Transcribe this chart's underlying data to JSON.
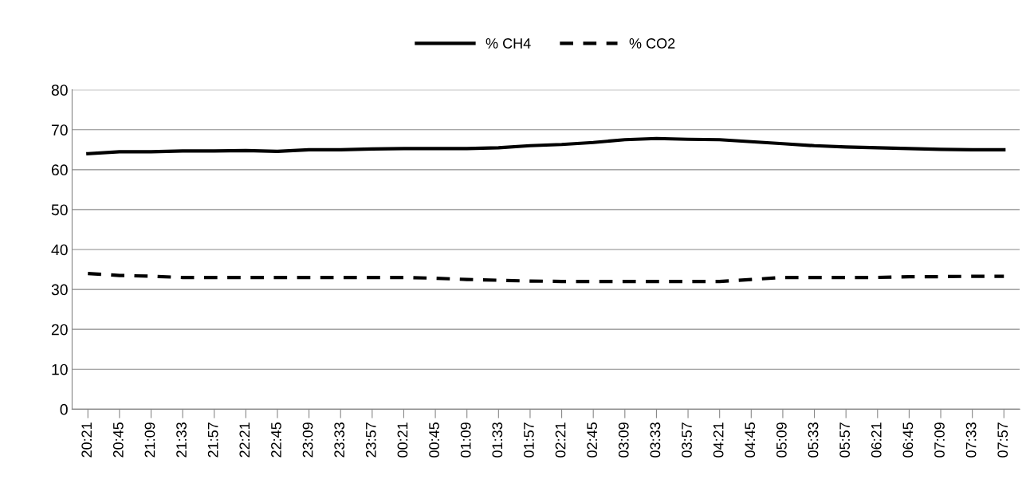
{
  "chart_data": {
    "type": "line",
    "categories": [
      "20:21",
      "20:45",
      "21:09",
      "21:33",
      "21:57",
      "22:21",
      "22:45",
      "23:09",
      "23:33",
      "23:57",
      "00:21",
      "00:45",
      "01:09",
      "01:33",
      "01:57",
      "02:21",
      "02:45",
      "03:09",
      "03:33",
      "03:57",
      "04:21",
      "04:45",
      "05:09",
      "05:33",
      "05:57",
      "06:21",
      "06:45",
      "07:09",
      "07:33",
      "07:57"
    ],
    "series": [
      {
        "name": "% CH4",
        "color": "#000000",
        "line_style": "solid",
        "values": [
          64,
          64.5,
          64.5,
          64.7,
          64.7,
          64.8,
          64.6,
          65,
          65,
          65.2,
          65.3,
          65.3,
          65.3,
          65.5,
          66,
          66.3,
          66.8,
          67.5,
          67.8,
          67.6,
          67.5,
          67,
          66.5,
          66,
          65.7,
          65.5,
          65.3,
          65.1,
          65,
          65
        ]
      },
      {
        "name": "% CO2",
        "color": "#000000",
        "line_style": "dashed",
        "values": [
          34,
          33.5,
          33.3,
          33,
          33,
          33,
          33,
          33,
          33,
          33,
          33,
          32.8,
          32.5,
          32.3,
          32.1,
          32,
          32,
          32,
          32,
          32,
          32,
          32.5,
          33,
          33,
          33,
          33,
          33.2,
          33.2,
          33.3,
          33.3
        ]
      }
    ],
    "ylim": [
      0,
      80
    ],
    "yticks": [
      0,
      10,
      20,
      30,
      40,
      50,
      60,
      70,
      80
    ],
    "grid": "y",
    "legend": "top",
    "marker": "none"
  }
}
